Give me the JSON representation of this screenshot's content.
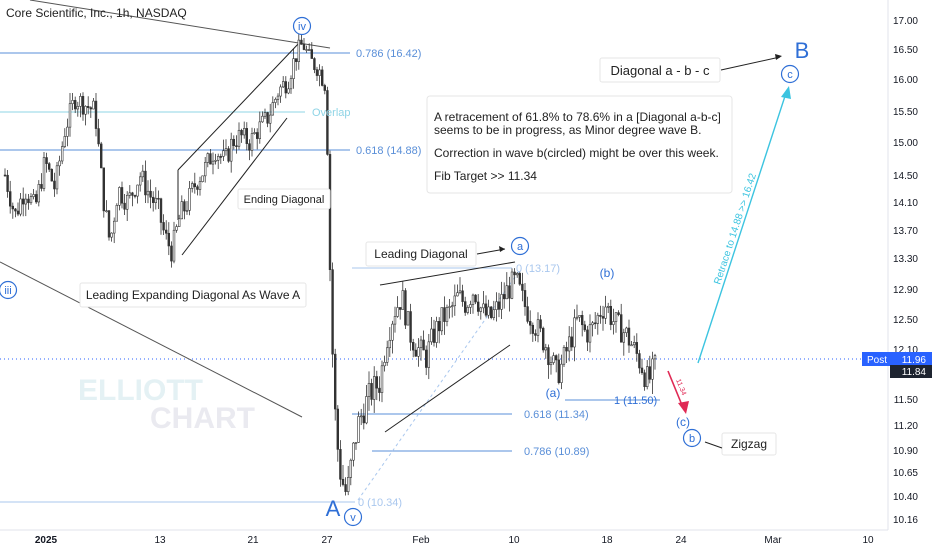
{
  "header": {
    "title": "Core Scientific, Inc., 1h, NASDAQ"
  },
  "watermark": {
    "line1": "ELLIOTT",
    "line2": "CHART"
  },
  "price_axis": {
    "ticks": [
      "17.00",
      "16.50",
      "16.00",
      "15.50",
      "15.00",
      "14.50",
      "14.10",
      "13.70",
      "13.30",
      "12.90",
      "12.50",
      "12.10",
      "11.50",
      "11.20",
      "10.90",
      "10.65",
      "10.40",
      "10.16"
    ],
    "post_label": "Post",
    "post_value": "11.96",
    "last_value": "11.84"
  },
  "time_axis": {
    "ticks": [
      "2025",
      "13",
      "21",
      "27",
      "Feb",
      "10",
      "18",
      "24",
      "Mar",
      "10"
    ]
  },
  "fib_labels": {
    "l1": "0.786 (16.42)",
    "l2": "Overlap",
    "l3": "0.618 (14.88)",
    "l4": "0 (13.17)",
    "l5": "0.618 (11.34)",
    "l6": "0.786 (10.89)",
    "l7": "0 (10.34)",
    "l8": "1 (11.50)"
  },
  "wave_labels": {
    "iv": "iv",
    "iii": "iii",
    "v": "v",
    "a": "a",
    "c_small": "c",
    "b_small": "b",
    "A": "A",
    "B": "B",
    "paren_b": "(b)",
    "paren_a": "(a)",
    "paren_c": "(c)"
  },
  "annotations": {
    "ending_diagonal": "Ending Diagonal",
    "leading_diagonal": "Leading Diagonal",
    "leading_expanding": "Leading Expanding Diagonal As Wave A",
    "diagonal_abc": "Diagonal a - b - c",
    "zigzag": "Zigzag",
    "retrace_text": "Retrace to 14.88 >> 16.42",
    "small_target": "11.34"
  },
  "info_box": {
    "line1": "A retracement of 61.8% to 78.6% in a [Diagonal a-b-c]",
    "line2": "seems to be in progress, as Minor degree wave B.",
    "line3": "Correction in wave b(circled) might be over this week.",
    "line4": "Fib Target >> 11.34"
  },
  "colors": {
    "wave_blue": "#2f6fd6",
    "fib_line": "#5a8fd8",
    "overlap": "#8fd4e6",
    "cyan_arrow": "#3cc4e0",
    "red_arrow": "#e02a55",
    "candle": "#333333",
    "post_badge": "#2962ff"
  },
  "chart_data": {
    "type": "candlestick",
    "title": "Core Scientific, Inc., 1h, NASDAQ",
    "y_axis_ticks": [
      17.0,
      16.5,
      16.0,
      15.5,
      15.0,
      14.5,
      14.1,
      13.7,
      13.3,
      12.9,
      12.5,
      12.1,
      11.5,
      11.2,
      10.9,
      10.65,
      10.4,
      10.16
    ],
    "ylim": [
      10.05,
      17.25
    ],
    "x_ticks": [
      "2025",
      "13",
      "21",
      "27",
      "Feb",
      "10",
      "18",
      "24",
      "Mar",
      "10"
    ],
    "fib_levels": [
      {
        "label": "0.786 (16.42)",
        "value": 16.42
      },
      {
        "label": "0.618 (14.88)",
        "value": 14.88
      },
      {
        "label": "0 (13.17)",
        "value": 13.17
      },
      {
        "label": "0.618 (11.34)",
        "value": 11.34
      },
      {
        "label": "0.786 (10.89)",
        "value": 10.89
      },
      {
        "label": "0 (10.34)",
        "value": 10.34
      },
      {
        "label": "1 (11.50)",
        "value": 11.5
      }
    ],
    "post_price": 11.96,
    "last_price": 11.84,
    "price_path": [
      [
        5,
        14.5
      ],
      [
        15,
        13.9
      ],
      [
        25,
        14.3
      ],
      [
        35,
        14.0
      ],
      [
        45,
        14.7
      ],
      [
        55,
        14.3
      ],
      [
        65,
        15.2
      ],
      [
        75,
        15.7
      ],
      [
        85,
        15.6
      ],
      [
        95,
        15.5
      ],
      [
        103,
        14.2
      ],
      [
        110,
        13.5
      ],
      [
        118,
        14.3
      ],
      [
        128,
        14.1
      ],
      [
        140,
        14.5
      ],
      [
        150,
        14.2
      ],
      [
        158,
        14.0
      ],
      [
        165,
        13.6
      ],
      [
        172,
        13.4
      ],
      [
        180,
        13.9
      ],
      [
        188,
        14.1
      ],
      [
        196,
        14.4
      ],
      [
        205,
        14.6
      ],
      [
        215,
        14.9
      ],
      [
        225,
        14.7
      ],
      [
        232,
        15.0
      ],
      [
        240,
        15.1
      ],
      [
        250,
        15.0
      ],
      [
        258,
        15.2
      ],
      [
        268,
        15.4
      ],
      [
        278,
        15.8
      ],
      [
        288,
        16.0
      ],
      [
        296,
        16.4
      ],
      [
        303,
        16.6
      ],
      [
        310,
        16.3
      ],
      [
        318,
        16.2
      ],
      [
        326,
        15.9
      ],
      [
        331,
        12.5
      ],
      [
        336,
        11.1
      ],
      [
        341,
        10.6
      ],
      [
        347,
        10.4
      ],
      [
        352,
        10.8
      ],
      [
        358,
        11.2
      ],
      [
        364,
        11.4
      ],
      [
        372,
        11.6
      ],
      [
        380,
        11.7
      ],
      [
        386,
        12.2
      ],
      [
        394,
        12.6
      ],
      [
        402,
        12.8
      ],
      [
        410,
        12.3
      ],
      [
        418,
        12.1
      ],
      [
        426,
        12.0
      ],
      [
        434,
        12.3
      ],
      [
        442,
        12.5
      ],
      [
        450,
        12.6
      ],
      [
        458,
        12.8
      ],
      [
        466,
        12.7
      ],
      [
        474,
        12.9
      ],
      [
        482,
        12.6
      ],
      [
        490,
        12.5
      ],
      [
        500,
        12.7
      ],
      [
        508,
        12.9
      ],
      [
        516,
        13.0
      ],
      [
        524,
        12.7
      ],
      [
        532,
        12.5
      ],
      [
        540,
        12.3
      ],
      [
        548,
        12.1
      ],
      [
        556,
        11.8
      ],
      [
        562,
        11.9
      ],
      [
        570,
        12.2
      ],
      [
        578,
        12.5
      ],
      [
        586,
        12.3
      ],
      [
        594,
        12.4
      ],
      [
        600,
        12.6
      ],
      [
        606,
        12.7
      ],
      [
        612,
        12.5
      ],
      [
        618,
        12.4
      ],
      [
        626,
        12.3
      ],
      [
        634,
        12.1
      ],
      [
        642,
        11.9
      ],
      [
        648,
        11.7
      ],
      [
        656,
        11.9
      ]
    ]
  }
}
